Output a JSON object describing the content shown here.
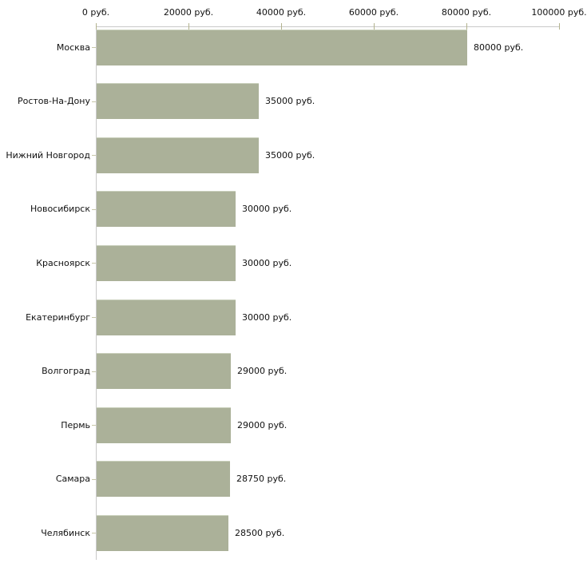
{
  "chart_data": {
    "type": "bar",
    "orientation": "horizontal",
    "title": "",
    "xlabel": "",
    "ylabel": "",
    "categories": [
      "Москва",
      "Ростов-На-Дону",
      "Нижний Новгород",
      "Новосибирск",
      "Красноярск",
      "Екатеринбург",
      "Волгоград",
      "Пермь",
      "Самара",
      "Челябинск"
    ],
    "values": [
      80000,
      35000,
      35000,
      30000,
      30000,
      30000,
      29000,
      29000,
      28750,
      28500
    ],
    "value_labels": [
      "80000 руб.",
      "35000 руб.",
      "35000 руб.",
      "30000 руб.",
      "30000 руб.",
      "30000 руб.",
      "29000 руб.",
      "29000 руб.",
      "28750 руб.",
      "28500 руб."
    ],
    "x_tick_labels": [
      "0 руб.",
      "20000 руб.",
      "40000 руб.",
      "60000 руб.",
      "80000 руб.",
      "100000 руб."
    ],
    "xlim": [
      0,
      100000
    ],
    "grid": false,
    "legend": false,
    "colors": {
      "bar_fill": "#abb199",
      "bar_highlight": "#cad0bc",
      "axis_line": "#c9c9c9",
      "x_tick": "#b3b38e",
      "y_tick": "#c6c6a8",
      "text": "#111111",
      "background": "#ffffff"
    }
  }
}
